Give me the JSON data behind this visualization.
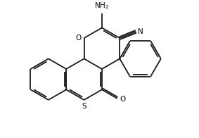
{
  "bg_color": "#ffffff",
  "bond_color": "#1a1a1a",
  "text_color": "#000000",
  "line_width": 1.3,
  "figsize": [
    2.83,
    1.96
  ],
  "dpi": 100,
  "xlim": [
    -3.0,
    4.5
  ],
  "ylim": [
    -2.8,
    3.2
  ]
}
